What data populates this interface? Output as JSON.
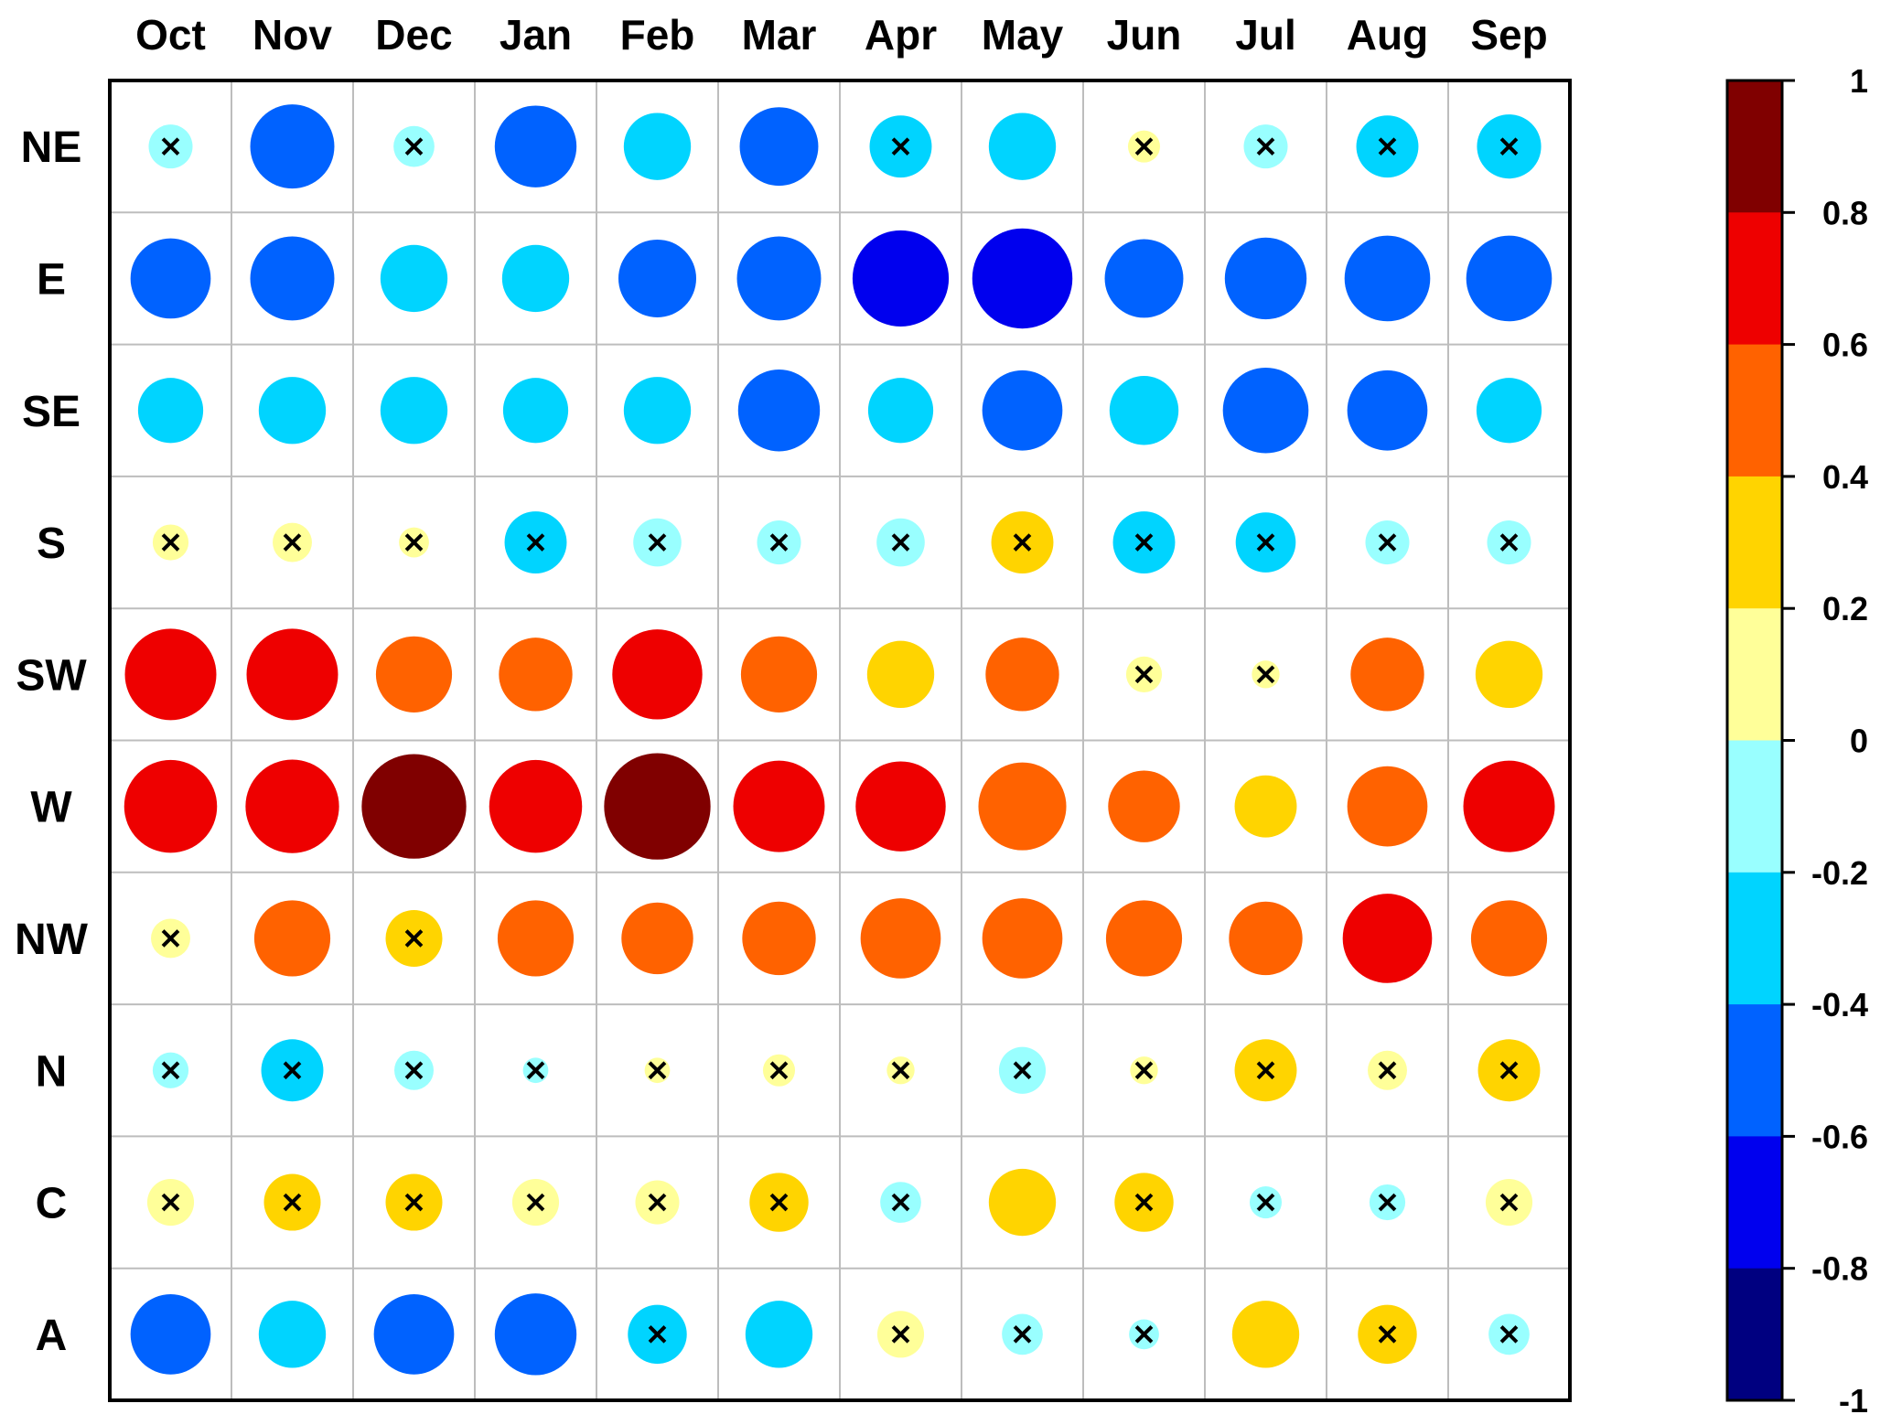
{
  "chart_data": {
    "type": "heatmap",
    "columns": [
      "Oct",
      "Nov",
      "Dec",
      "Jan",
      "Feb",
      "Mar",
      "Apr",
      "May",
      "Jun",
      "Jul",
      "Aug",
      "Sep"
    ],
    "rows": [
      "NE",
      "E",
      "SE",
      "S",
      "SW",
      "W",
      "NW",
      "N",
      "C",
      "A"
    ],
    "values": [
      [
        -0.15,
        -0.55,
        -0.13,
        -0.52,
        -0.35,
        -0.48,
        -0.3,
        -0.35,
        0.08,
        -0.15,
        -0.3,
        -0.32
      ],
      [
        -0.5,
        -0.55,
        -0.35,
        -0.35,
        -0.47,
        -0.55,
        -0.72,
        -0.78,
        -0.48,
        -0.52,
        -0.57,
        -0.57
      ],
      [
        -0.33,
        -0.35,
        -0.35,
        -0.33,
        -0.35,
        -0.52,
        -0.33,
        -0.5,
        -0.37,
        -0.57,
        -0.5,
        -0.33
      ],
      [
        0.1,
        0.12,
        0.07,
        -0.3,
        -0.18,
        -0.15,
        -0.18,
        0.3,
        -0.3,
        -0.28,
        -0.15,
        -0.15
      ],
      [
        0.65,
        0.65,
        0.45,
        0.42,
        0.63,
        0.45,
        0.35,
        0.42,
        0.1,
        0.06,
        0.42,
        0.35
      ],
      [
        0.67,
        0.68,
        0.85,
        0.67,
        0.88,
        0.65,
        0.63,
        0.6,
        0.4,
        0.3,
        0.5,
        0.65
      ],
      [
        0.12,
        0.45,
        0.25,
        0.45,
        0.4,
        0.42,
        0.5,
        0.5,
        0.45,
        0.42,
        0.62,
        0.45
      ],
      [
        -0.1,
        -0.3,
        -0.12,
        -0.05,
        0.05,
        0.08,
        0.06,
        -0.17,
        0.06,
        0.3,
        0.12,
        0.3
      ],
      [
        0.17,
        0.25,
        0.25,
        0.17,
        0.15,
        0.27,
        -0.13,
        0.35,
        0.27,
        -0.08,
        -0.1,
        0.17
      ],
      [
        -0.5,
        -0.35,
        -0.5,
        -0.52,
        -0.27,
        -0.35,
        0.17,
        -0.13,
        -0.07,
        0.35,
        0.27,
        -0.13
      ]
    ],
    "not_significant": [
      [
        true,
        false,
        true,
        false,
        false,
        false,
        true,
        false,
        true,
        true,
        true,
        true
      ],
      [
        false,
        false,
        false,
        false,
        false,
        false,
        false,
        false,
        false,
        false,
        false,
        false
      ],
      [
        false,
        false,
        false,
        false,
        false,
        false,
        false,
        false,
        false,
        false,
        false,
        false
      ],
      [
        true,
        true,
        true,
        true,
        true,
        true,
        true,
        true,
        true,
        true,
        true,
        true
      ],
      [
        false,
        false,
        false,
        false,
        false,
        false,
        false,
        false,
        true,
        true,
        false,
        false
      ],
      [
        false,
        false,
        false,
        false,
        false,
        false,
        false,
        false,
        false,
        false,
        false,
        false
      ],
      [
        true,
        false,
        true,
        false,
        false,
        false,
        false,
        false,
        false,
        false,
        false,
        false
      ],
      [
        true,
        true,
        true,
        true,
        true,
        true,
        true,
        true,
        true,
        true,
        true,
        true
      ],
      [
        true,
        true,
        true,
        true,
        true,
        true,
        true,
        false,
        true,
        true,
        true,
        true
      ],
      [
        false,
        false,
        false,
        false,
        true,
        false,
        true,
        true,
        true,
        false,
        true,
        true
      ]
    ],
    "colorbar": {
      "ticks": [
        "1",
        "0.8",
        "0.6",
        "0.4",
        "0.2",
        "0",
        "-0.2",
        "-0.4",
        "-0.6",
        "-0.8",
        "-1"
      ],
      "colors_top_to_bottom": [
        "#800000",
        "#ee0000",
        "#ff6200",
        "#ffd400",
        "#ffff99",
        "#99ffff",
        "#00d4ff",
        "#0062ff",
        "#0000ee",
        "#000080"
      ],
      "range": [
        -1,
        1
      ]
    },
    "marker": "x",
    "grid": true
  }
}
